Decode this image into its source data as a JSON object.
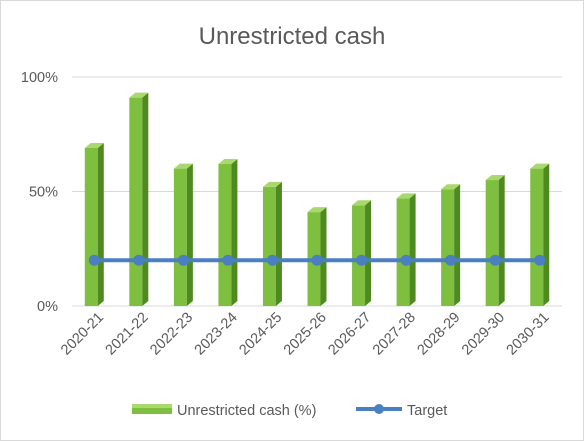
{
  "chart_data": {
    "type": "bar",
    "title": "Unrestricted cash",
    "categories": [
      "2020-21",
      "2021-22",
      "2022-23",
      "2023-24",
      "2024-25",
      "2025-26",
      "2026-27",
      "2027-28",
      "2028-29",
      "2029-30",
      "2030-31"
    ],
    "series": [
      {
        "name": "Unrestricted cash (%)",
        "type": "bar",
        "values": [
          69,
          91,
          60,
          62,
          52,
          41,
          44,
          47,
          51,
          55,
          60
        ]
      },
      {
        "name": "Target",
        "type": "line",
        "values": [
          20,
          20,
          20,
          20,
          20,
          20,
          20,
          20,
          20,
          20,
          20
        ]
      }
    ],
    "yticks": [
      "0%",
      "50%",
      "100%"
    ],
    "ylim": [
      0,
      100
    ],
    "grid": true,
    "legend_position": "bottom",
    "colors": {
      "bar_front": "#7fbf3f",
      "bar_side": "#4e8a1f",
      "bar_top": "#a9d86e",
      "line": "#4a7fc1",
      "grid": "#d9d9d9",
      "text": "#595959",
      "border": "#d9d9d9"
    }
  }
}
